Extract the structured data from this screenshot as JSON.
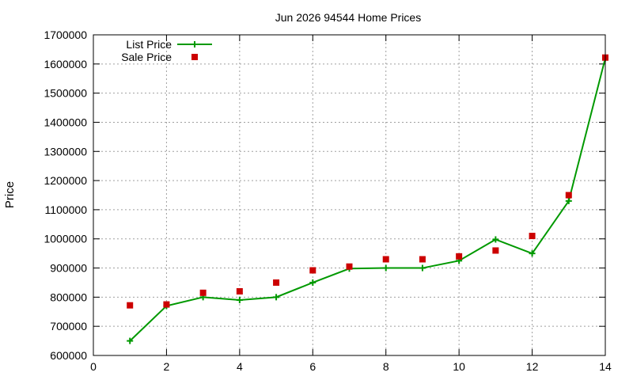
{
  "chart_data": {
    "type": "line",
    "title": "Jun 2026 94544 Home Prices",
    "xlabel": "",
    "ylabel": "Price",
    "xlim": [
      0,
      14
    ],
    "ylim": [
      600000,
      1700000
    ],
    "x_ticks": [
      0,
      2,
      4,
      6,
      8,
      10,
      12,
      14
    ],
    "y_ticks": [
      600000,
      700000,
      800000,
      900000,
      1000000,
      1100000,
      1200000,
      1300000,
      1400000,
      1500000,
      1600000,
      1700000
    ],
    "grid": true,
    "legend_position": "top-left",
    "series": [
      {
        "name": "List Price",
        "style": "line-with-plus-markers",
        "color": "#009900",
        "x": [
          1,
          2,
          3,
          4,
          5,
          6,
          7,
          8,
          9,
          10,
          11,
          12,
          13,
          14
        ],
        "y": [
          650000,
          770000,
          800000,
          790000,
          800000,
          850000,
          898000,
          900000,
          900000,
          925000,
          998000,
          950000,
          1130000,
          1620000
        ]
      },
      {
        "name": "Sale Price",
        "style": "square-markers",
        "color": "#cc0000",
        "x": [
          1,
          2,
          3,
          4,
          5,
          6,
          7,
          8,
          9,
          10,
          11,
          12,
          13,
          14
        ],
        "y": [
          772000,
          775000,
          815000,
          820000,
          850000,
          892000,
          905000,
          930000,
          930000,
          940000,
          960000,
          1010000,
          1150000,
          1622000
        ]
      }
    ]
  }
}
